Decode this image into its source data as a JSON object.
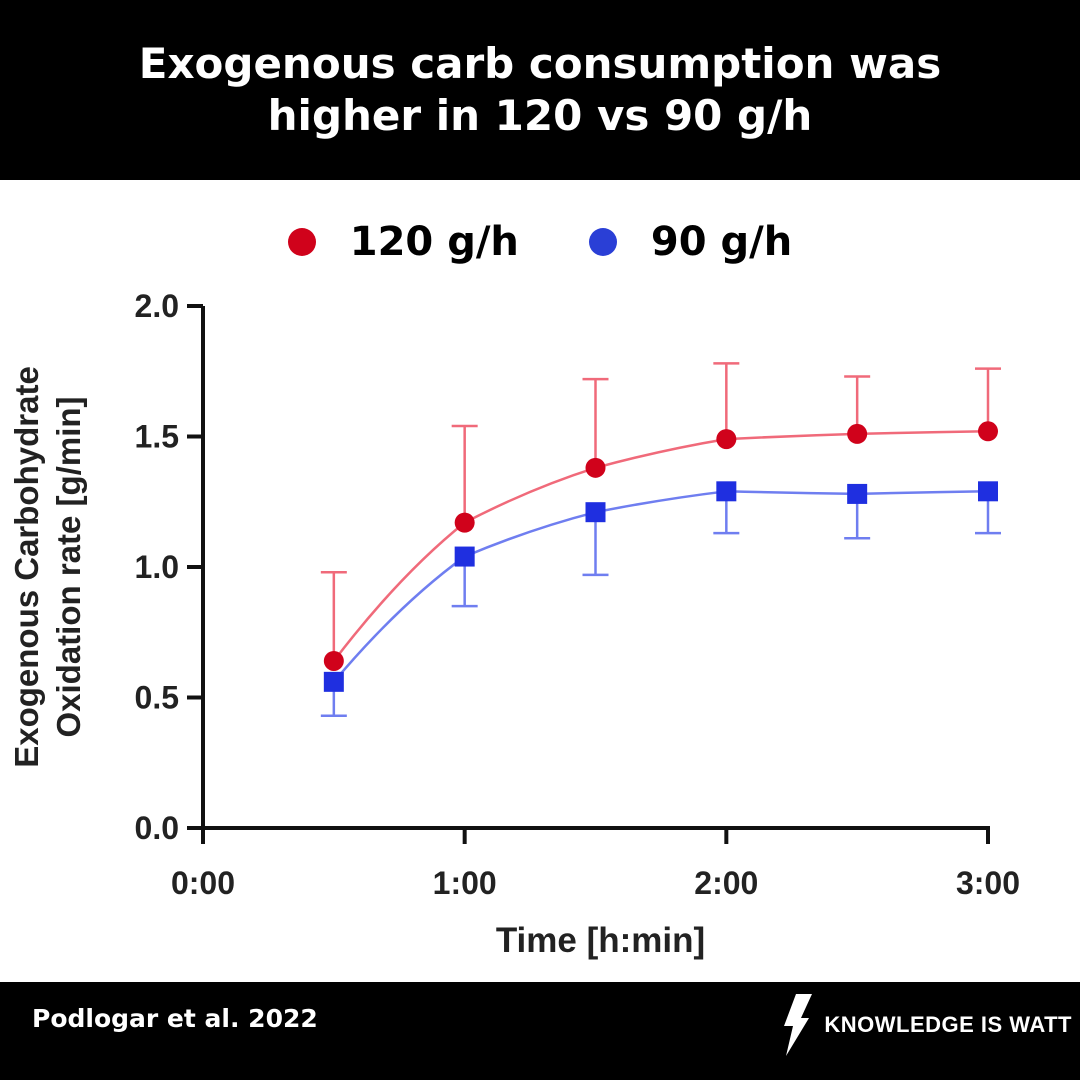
{
  "header": {
    "title_line1": "Exogenous carb consumption was",
    "title_line2": "higher in 120 vs 90 g/h"
  },
  "footer": {
    "citation": "Podlogar et al. 2022",
    "brand": "KNOWLEDGE IS WATT",
    "brand_icon": "lightning-bolt-icon"
  },
  "colors": {
    "series_120": "#d0021b",
    "series_90": "#1f2fe0",
    "line_120": "#f06a7a",
    "line_90": "#6f7ef0",
    "axis": "#111111",
    "header_bg": "#000000"
  },
  "chart_data": {
    "type": "line",
    "xlabel": "Time [h:min]",
    "ylabel_line1": "Exogenous Carbohydrate",
    "ylabel_line2": "Oxidation rate [g/min]",
    "xlim": [
      0,
      180
    ],
    "ylim": [
      0,
      2.0
    ],
    "x_ticks": [
      0,
      60,
      120,
      180
    ],
    "x_tick_labels": [
      "0:00",
      "1:00",
      "2:00",
      "3:00"
    ],
    "y_ticks": [
      0.0,
      0.5,
      1.0,
      1.5,
      2.0
    ],
    "y_tick_labels": [
      "0.0",
      "0.5",
      "1.0",
      "1.5",
      "2.0"
    ],
    "legend_position": "top-center",
    "grid": false,
    "series": [
      {
        "name": "120 g/h",
        "marker": "circle",
        "x": [
          30,
          60,
          90,
          120,
          150,
          180
        ],
        "y": [
          0.64,
          1.17,
          1.38,
          1.49,
          1.51,
          1.52
        ],
        "error": [
          0.34,
          0.37,
          0.34,
          0.29,
          0.22,
          0.24
        ],
        "error_direction": "up"
      },
      {
        "name": "90 g/h",
        "marker": "square",
        "x": [
          30,
          60,
          90,
          120,
          150,
          180
        ],
        "y": [
          0.56,
          1.04,
          1.21,
          1.29,
          1.28,
          1.29
        ],
        "error": [
          0.13,
          0.19,
          0.24,
          0.16,
          0.17,
          0.16
        ],
        "error_direction": "down"
      }
    ]
  }
}
